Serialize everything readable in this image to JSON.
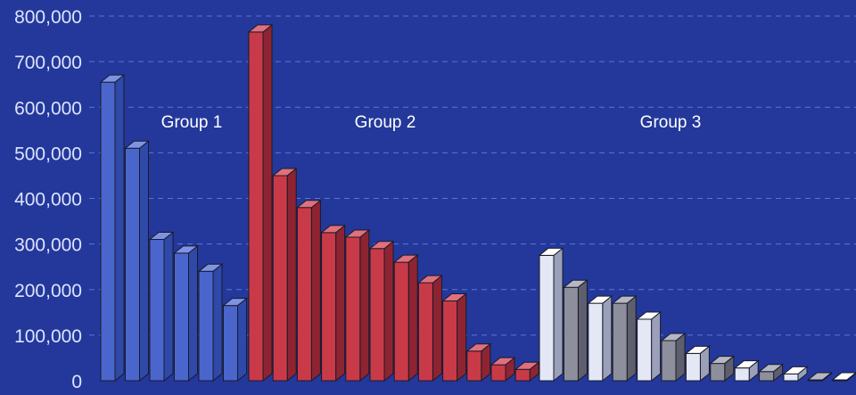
{
  "chart_data": {
    "type": "bar",
    "style": "3d",
    "grid": true,
    "ylim": [
      0,
      800000
    ],
    "y_ticks": [
      "800,000",
      "700,000",
      "600,000",
      "500,000",
      "400,000",
      "300,000",
      "200,000",
      "100,000",
      "0"
    ],
    "y_tick_values": [
      800000,
      700000,
      600000,
      500000,
      400000,
      300000,
      200000,
      100000,
      0
    ],
    "groups": [
      {
        "name": "Group 1",
        "colors": {
          "front": "#4a66cc",
          "side": "#2f49a8",
          "top": "#7d93e4"
        },
        "values": [
          655000,
          510000,
          310000,
          280000,
          240000,
          165000
        ]
      },
      {
        "name": "Group 2",
        "colors": {
          "front": "#c93a48",
          "side": "#8e2431",
          "top": "#e0707c"
        },
        "values": [
          765000,
          450000,
          380000,
          325000,
          315000,
          290000,
          260000,
          215000,
          175000,
          65000,
          35000,
          25000
        ]
      },
      {
        "name": "Group 3",
        "alt_colors": [
          {
            "front": "#e4e8f6",
            "side": "#9aa0b8",
            "top": "#ffffff"
          },
          {
            "front": "#8d8f9c",
            "side": "#5d5f6c",
            "top": "#b5b7c4"
          }
        ],
        "values": [
          275000,
          205000,
          170000,
          170000,
          135000,
          88000,
          60000,
          38000,
          28000,
          20000,
          15000,
          2000,
          2000
        ]
      }
    ],
    "colors": {
      "background": "#23389a",
      "gridline": "#6f8ae4",
      "tick_text": "#dde3ff",
      "group_label": "#ffffff"
    }
  }
}
